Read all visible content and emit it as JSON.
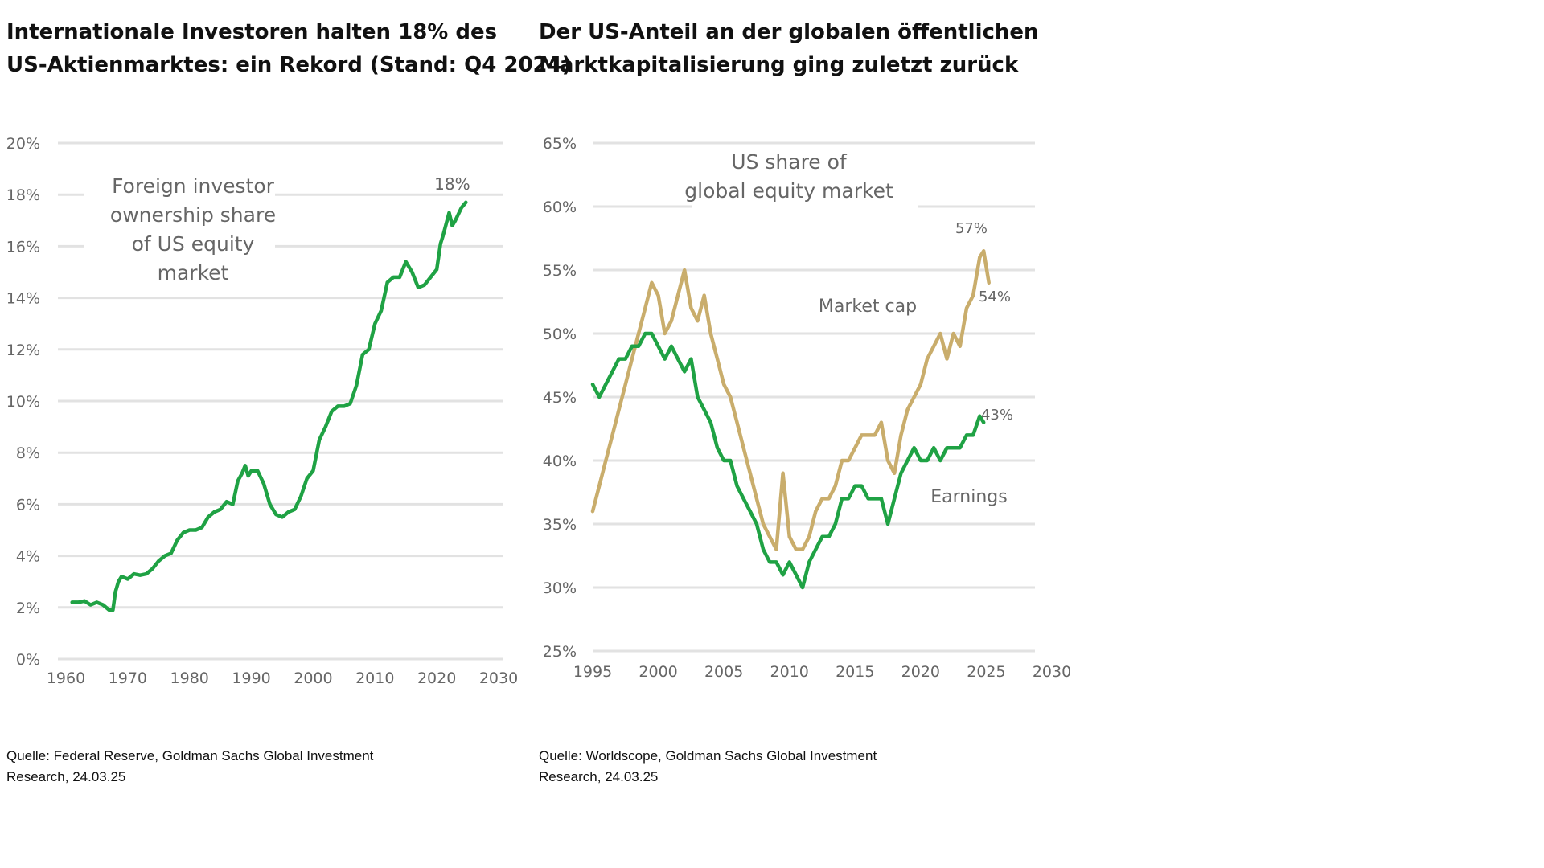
{
  "left": {
    "title_line1": "Internationale Investoren halten 18% des",
    "title_line2": "US-Aktienmarktes: ein Rekord (Stand: Q4 2024)",
    "source_line1": "Quelle: Federal Reserve, Goldman Sachs Global Investment",
    "source_line2": "Research, 24.03.25"
  },
  "right": {
    "title_line1": "Der US-Anteil an der globalen öffentlichen",
    "title_line2": "Marktkapitalisierung ging zuletzt zurück",
    "source_line1": "Quelle: Worldscope, Goldman Sachs Global Investment",
    "source_line2": "Research, 24.03.25"
  },
  "colors": {
    "green": "#1fa244",
    "gold": "#c9ad6c",
    "label_green": "#2fb35a",
    "grid": "#e2e2e2",
    "tick": "#666666"
  },
  "chart_data": [
    {
      "type": "line",
      "annotation": [
        "Foreign investor",
        "ownership share",
        "of US equity",
        "market"
      ],
      "xlim": [
        1960,
        2030
      ],
      "ylim": [
        0,
        20
      ],
      "x_ticks": [
        "1960",
        "1970",
        "1980",
        "1990",
        "2000",
        "2010",
        "2020",
        "2030"
      ],
      "y_ticks": [
        "0%",
        "2%",
        "4%",
        "6%",
        "8%",
        "10%",
        "12%",
        "14%",
        "16%",
        "18%",
        "20%"
      ],
      "grid": true,
      "end_label": "18%",
      "series": [
        {
          "color": "#1fa244",
          "points": [
            [
              1961,
              2.2
            ],
            [
              1962,
              2.2
            ],
            [
              1963,
              2.25
            ],
            [
              1964,
              2.1
            ],
            [
              1965,
              2.2
            ],
            [
              1966,
              2.1
            ],
            [
              1967,
              1.9
            ],
            [
              1967.6,
              1.9
            ],
            [
              1968,
              2.6
            ],
            [
              1968.5,
              3.0
            ],
            [
              1969,
              3.2
            ],
            [
              1970,
              3.1
            ],
            [
              1971,
              3.3
            ],
            [
              1972,
              3.25
            ],
            [
              1973,
              3.3
            ],
            [
              1974,
              3.5
            ],
            [
              1975,
              3.8
            ],
            [
              1976,
              4.0
            ],
            [
              1977,
              4.1
            ],
            [
              1978,
              4.6
            ],
            [
              1979,
              4.9
            ],
            [
              1980,
              5.0
            ],
            [
              1981,
              5.0
            ],
            [
              1982,
              5.1
            ],
            [
              1983,
              5.5
            ],
            [
              1984,
              5.7
            ],
            [
              1985,
              5.8
            ],
            [
              1986,
              6.1
            ],
            [
              1987,
              6.0
            ],
            [
              1987.8,
              6.9
            ],
            [
              1988.5,
              7.2
            ],
            [
              1989,
              7.5
            ],
            [
              1989.5,
              7.1
            ],
            [
              1990,
              7.3
            ],
            [
              1991,
              7.3
            ],
            [
              1992,
              6.8
            ],
            [
              1993,
              6.0
            ],
            [
              1994,
              5.6
            ],
            [
              1995,
              5.5
            ],
            [
              1996,
              5.7
            ],
            [
              1997,
              5.8
            ],
            [
              1998,
              6.3
            ],
            [
              1999,
              7.0
            ],
            [
              2000,
              7.3
            ],
            [
              2001,
              8.5
            ],
            [
              2002,
              9.0
            ],
            [
              2003,
              9.6
            ],
            [
              2004,
              9.8
            ],
            [
              2005,
              9.8
            ],
            [
              2006,
              9.9
            ],
            [
              2007,
              10.6
            ],
            [
              2008,
              11.8
            ],
            [
              2009,
              12.0
            ],
            [
              2010,
              13.0
            ],
            [
              2011,
              13.5
            ],
            [
              2012,
              14.6
            ],
            [
              2013,
              14.8
            ],
            [
              2014,
              14.8
            ],
            [
              2015,
              15.4
            ],
            [
              2016,
              15.0
            ],
            [
              2017,
              14.4
            ],
            [
              2018,
              14.5
            ],
            [
              2019,
              14.8
            ],
            [
              2020,
              15.1
            ],
            [
              2020.6,
              16.1
            ],
            [
              2021,
              16.4
            ],
            [
              2022,
              17.3
            ],
            [
              2022.5,
              16.8
            ],
            [
              2023,
              17.0
            ],
            [
              2024,
              17.5
            ],
            [
              2024.7,
              17.7
            ]
          ]
        }
      ]
    },
    {
      "type": "line",
      "title": "US share of global equity market",
      "xlim": [
        1995,
        2030
      ],
      "ylim": [
        25,
        65
      ],
      "x_ticks": [
        "1995",
        "2000",
        "2005",
        "2010",
        "2015",
        "2020",
        "2025",
        "2030"
      ],
      "y_ticks": [
        "25%",
        "30%",
        "35%",
        "40%",
        "45%",
        "50%",
        "55%",
        "60%",
        "65%"
      ],
      "grid": true,
      "series": [
        {
          "name": "Market cap",
          "color": "#c9ad6c",
          "end_labels": [
            "57%",
            "54%"
          ],
          "points": [
            [
              1995,
              36
            ],
            [
              1995.5,
              38
            ],
            [
              1996,
              40
            ],
            [
              1996.5,
              42
            ],
            [
              1997,
              44
            ],
            [
              1997.5,
              46
            ],
            [
              1998,
              48
            ],
            [
              1998.5,
              50
            ],
            [
              1999,
              52
            ],
            [
              1999.5,
              54
            ],
            [
              2000,
              53
            ],
            [
              2000.5,
              50
            ],
            [
              2001,
              51
            ],
            [
              2001.5,
              53
            ],
            [
              2002,
              55
            ],
            [
              2002.5,
              52
            ],
            [
              2003,
              51
            ],
            [
              2003.5,
              53
            ],
            [
              2004,
              50
            ],
            [
              2004.5,
              48
            ],
            [
              2005,
              46
            ],
            [
              2005.5,
              45
            ],
            [
              2006,
              43
            ],
            [
              2006.5,
              41
            ],
            [
              2007,
              39
            ],
            [
              2007.5,
              37
            ],
            [
              2008,
              35
            ],
            [
              2008.5,
              34
            ],
            [
              2009,
              33
            ],
            [
              2009.5,
              39
            ],
            [
              2010,
              34
            ],
            [
              2010.5,
              33
            ],
            [
              2011,
              33
            ],
            [
              2011.5,
              34
            ],
            [
              2012,
              36
            ],
            [
              2012.5,
              37
            ],
            [
              2013,
              37
            ],
            [
              2013.5,
              38
            ],
            [
              2014,
              40
            ],
            [
              2014.5,
              40
            ],
            [
              2015,
              41
            ],
            [
              2015.5,
              42
            ],
            [
              2016,
              42
            ],
            [
              2016.5,
              42
            ],
            [
              2017,
              43
            ],
            [
              2017.5,
              40
            ],
            [
              2018,
              39
            ],
            [
              2018.5,
              42
            ],
            [
              2019,
              44
            ],
            [
              2019.5,
              45
            ],
            [
              2020,
              46
            ],
            [
              2020.5,
              48
            ],
            [
              2021,
              49
            ],
            [
              2021.5,
              50
            ],
            [
              2022,
              48
            ],
            [
              2022.5,
              50
            ],
            [
              2023,
              49
            ],
            [
              2023.5,
              52
            ],
            [
              2024,
              53
            ],
            [
              2024.5,
              56
            ],
            [
              2024.8,
              56.5
            ],
            [
              2025.2,
              54
            ]
          ]
        },
        {
          "name": "Earnings",
          "color": "#1fa244",
          "end_labels": [
            "43%"
          ],
          "points": [
            [
              1995,
              46
            ],
            [
              1995.5,
              45
            ],
            [
              1996,
              46
            ],
            [
              1996.5,
              47
            ],
            [
              1997,
              48
            ],
            [
              1997.5,
              48
            ],
            [
              1998,
              49
            ],
            [
              1998.5,
              49
            ],
            [
              1999,
              50
            ],
            [
              1999.5,
              50
            ],
            [
              2000,
              49
            ],
            [
              2000.5,
              48
            ],
            [
              2001,
              49
            ],
            [
              2001.5,
              48
            ],
            [
              2002,
              47
            ],
            [
              2002.5,
              48
            ],
            [
              2003,
              45
            ],
            [
              2003.5,
              44
            ],
            [
              2004,
              43
            ],
            [
              2004.5,
              41
            ],
            [
              2005,
              40
            ],
            [
              2005.5,
              40
            ],
            [
              2006,
              38
            ],
            [
              2006.5,
              37
            ],
            [
              2007,
              36
            ],
            [
              2007.5,
              35
            ],
            [
              2008,
              33
            ],
            [
              2008.5,
              32
            ],
            [
              2009,
              32
            ],
            [
              2009.5,
              31
            ],
            [
              2010,
              32
            ],
            [
              2010.5,
              31
            ],
            [
              2011,
              30
            ],
            [
              2011.5,
              32
            ],
            [
              2012,
              33
            ],
            [
              2012.5,
              34
            ],
            [
              2013,
              34
            ],
            [
              2013.5,
              35
            ],
            [
              2014,
              37
            ],
            [
              2014.5,
              37
            ],
            [
              2015,
              38
            ],
            [
              2015.5,
              38
            ],
            [
              2016,
              37
            ],
            [
              2016.5,
              37
            ],
            [
              2017,
              37
            ],
            [
              2017.5,
              35
            ],
            [
              2018,
              37
            ],
            [
              2018.5,
              39
            ],
            [
              2019,
              40
            ],
            [
              2019.5,
              41
            ],
            [
              2020,
              40
            ],
            [
              2020.5,
              40
            ],
            [
              2021,
              41
            ],
            [
              2021.5,
              40
            ],
            [
              2022,
              41
            ],
            [
              2022.5,
              41
            ],
            [
              2023,
              41
            ],
            [
              2023.5,
              42
            ],
            [
              2024,
              42
            ],
            [
              2024.5,
              43.5
            ],
            [
              2024.8,
              43
            ]
          ]
        }
      ]
    }
  ]
}
